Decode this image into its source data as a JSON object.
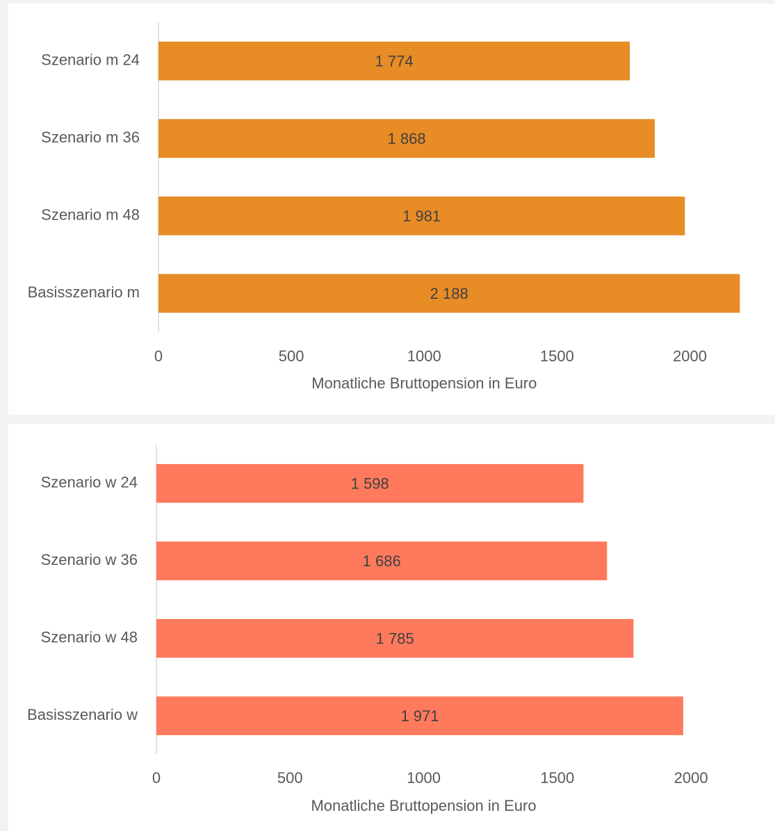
{
  "chart_data": [
    {
      "type": "bar",
      "orientation": "horizontal",
      "categories": [
        "Szenario m 24",
        "Szenario m 36",
        "Szenario m 48",
        "Basisszenario m"
      ],
      "values": [
        1774,
        1868,
        1981,
        2188
      ],
      "value_labels": [
        "1 774",
        "1 868",
        "1 981",
        "2 188"
      ],
      "color": "#e88c26",
      "xlabel": "Monatliche Bruttopension in Euro",
      "xlim": [
        0,
        2200
      ],
      "xticks": [
        0,
        500,
        1000,
        1500,
        2000
      ]
    },
    {
      "type": "bar",
      "orientation": "horizontal",
      "categories": [
        "Szenario w 24",
        "Szenario w 36",
        "Szenario w 48",
        "Basisszenario w"
      ],
      "values": [
        1598,
        1686,
        1785,
        1971
      ],
      "value_labels": [
        "1 598",
        "1 686",
        "1 785",
        "1 971"
      ],
      "color": "#ff7a5c",
      "xlabel": "Monatliche Bruttopension in Euro",
      "xlim": [
        0,
        2200
      ],
      "xticks": [
        0,
        500,
        1000,
        1500,
        2000
      ]
    }
  ]
}
